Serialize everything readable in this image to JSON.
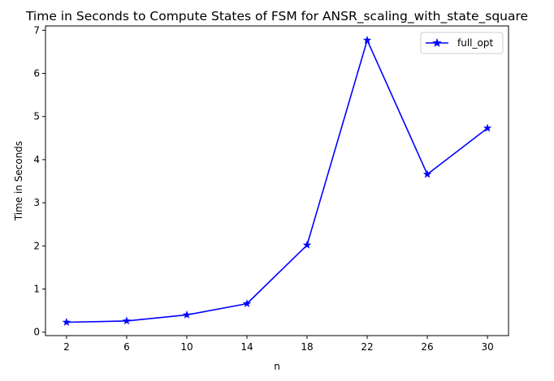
{
  "chart_data": {
    "type": "line",
    "title": "Time in Seconds to Compute States of FSM for ANSR_scaling_with_state_square",
    "xlabel": "n",
    "ylabel": "Time in Seconds",
    "x": [
      2,
      6,
      10,
      14,
      18,
      22,
      26,
      30
    ],
    "xticks": [
      2,
      6,
      10,
      14,
      18,
      22,
      26,
      30
    ],
    "yticks": [
      0,
      1,
      2,
      3,
      4,
      5,
      6,
      7
    ],
    "xlim": [
      0.6,
      31.4
    ],
    "ylim": [
      -0.08,
      7.1
    ],
    "grid": false,
    "legend_position": "top-right",
    "series": [
      {
        "name": "full_opt",
        "color": "#0000ff",
        "marker": "star",
        "values": [
          0.23,
          0.26,
          0.4,
          0.66,
          2.02,
          6.77,
          3.66,
          4.73
        ]
      }
    ]
  }
}
